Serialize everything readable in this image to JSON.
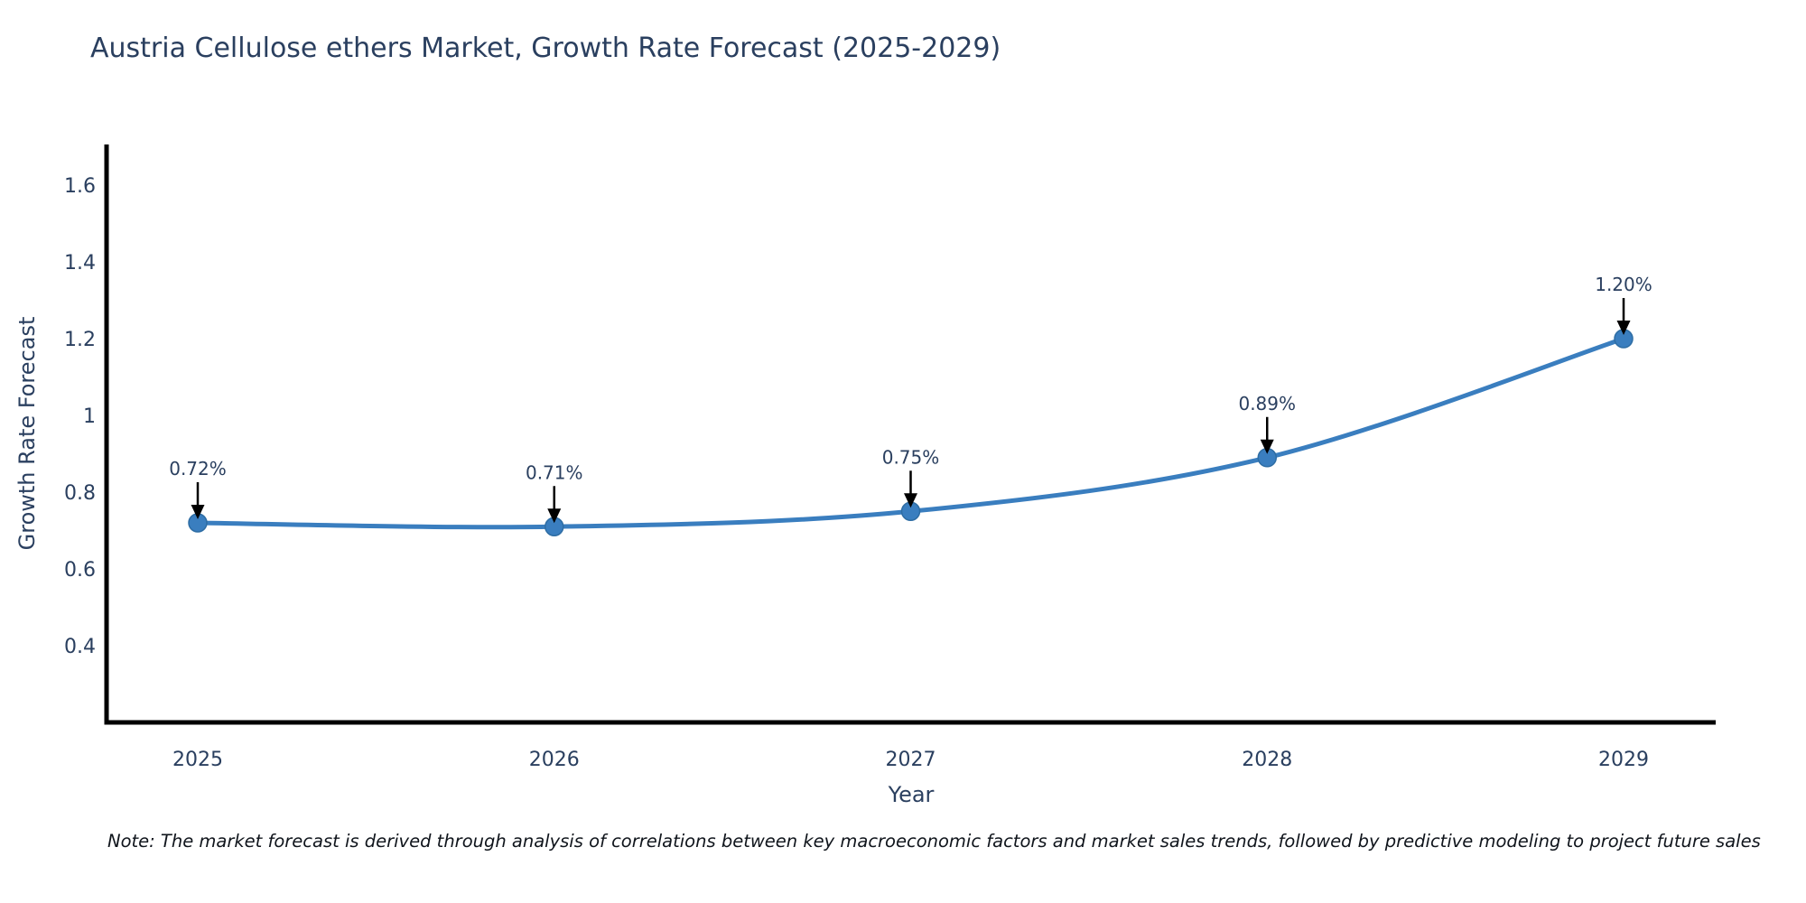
{
  "chart_data": {
    "type": "line",
    "title": "Austria Cellulose ethers Market, Growth Rate Forecast (2025-2029)",
    "xlabel": "Year",
    "ylabel": "Growth Rate Forecast",
    "categories": [
      "2025",
      "2026",
      "2027",
      "2028",
      "2029"
    ],
    "series": [
      {
        "name": "Growth Rate Forecast",
        "values": [
          0.72,
          0.71,
          0.75,
          0.89,
          1.2
        ]
      }
    ],
    "point_labels": [
      "0.72%",
      "0.71%",
      "0.75%",
      "0.89%",
      "1.20%"
    ],
    "ytick_values": [
      0.4,
      0.6,
      0.8,
      1,
      1.2,
      1.4,
      1.6
    ],
    "ytick_labels": [
      "0.4",
      "0.6",
      "0.8",
      "1",
      "1.2",
      "1.4",
      "1.6"
    ],
    "ylim": [
      0.2,
      1.706
    ],
    "line_shape": "spline",
    "grid": false,
    "legend": "none",
    "note": "Note: The market forecast is derived through analysis of correlations between key macroeconomic factors and market sales trends, followed by predictive modeling to project future sales",
    "colors": {
      "line": "#3a7ebf",
      "marker": "#3a7ebf",
      "marker_edge": "#2e6da4",
      "axis": "#000000",
      "text": "#2a3f5f",
      "annotation_arrow": "#000000",
      "note_text": "#10151c",
      "background": "#ffffff"
    }
  }
}
